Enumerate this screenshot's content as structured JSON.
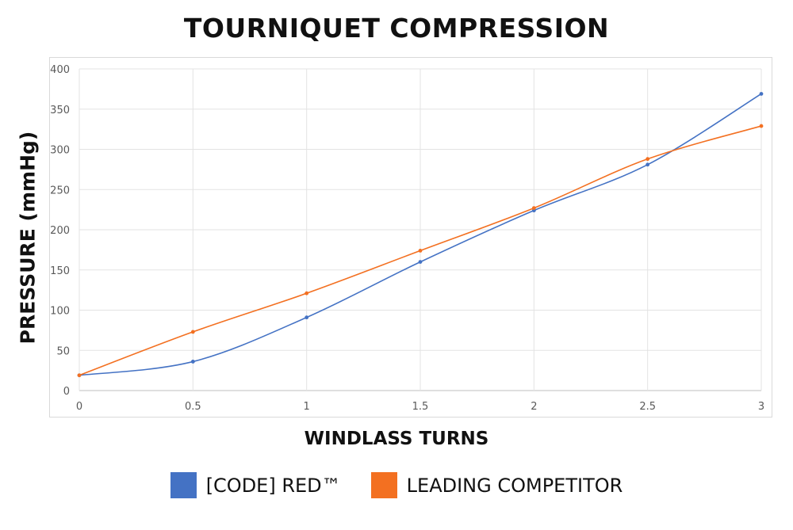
{
  "chart_data": {
    "type": "line",
    "title": "TOURNIQUET COMPRESSION",
    "xlabel": "WINDLASS TURNS",
    "ylabel": "PRESSURE (mmHg)",
    "xlim": [
      0,
      3
    ],
    "ylim": [
      0,
      400
    ],
    "xticks": [
      0,
      0.5,
      1,
      1.5,
      2,
      2.5,
      3
    ],
    "xtick_labels": [
      "0",
      "0.5",
      "1",
      "1.5",
      "2",
      "2.5",
      "3"
    ],
    "yticks": [
      0,
      50,
      100,
      150,
      200,
      250,
      300,
      350,
      400
    ],
    "ytick_labels": [
      "0",
      "50",
      "100",
      "150",
      "200",
      "250",
      "300",
      "350",
      "400"
    ],
    "grid": true,
    "legend_position": "bottom",
    "x": [
      0,
      0.5,
      1,
      1.5,
      2,
      2.5,
      3
    ],
    "series": [
      {
        "name": "[CODE] RED™",
        "color": "#4472c4",
        "values": [
          19,
          36,
          91,
          160,
          224,
          281,
          369
        ],
        "smooth": true
      },
      {
        "name": "LEADING COMPETITOR",
        "color": "#f37021",
        "values": [
          19,
          73,
          121,
          174,
          227,
          288,
          329
        ],
        "smooth": true
      }
    ]
  }
}
